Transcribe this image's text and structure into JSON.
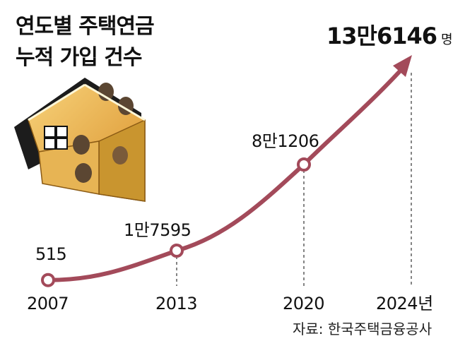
{
  "title_lines": [
    "연도별 주택연금",
    "누적 가입 건수"
  ],
  "source": "자료: 한국주택금융공사",
  "chart_data": {
    "type": "line",
    "x": [
      2007,
      2013,
      2020,
      2024
    ],
    "x_tick_labels": [
      "2007",
      "2013",
      "2020",
      "2024년"
    ],
    "values": [
      515,
      17595,
      81206,
      136146
    ],
    "data_labels": [
      "515",
      "1만7595",
      "8만1206",
      "13만6146"
    ],
    "last_label_unit": "명",
    "title": "연도별 주택연금 누적 가입 건수",
    "xlabel": "",
    "ylabel": "",
    "grid": false,
    "legend": "none",
    "line_color": "#a34a5a"
  }
}
